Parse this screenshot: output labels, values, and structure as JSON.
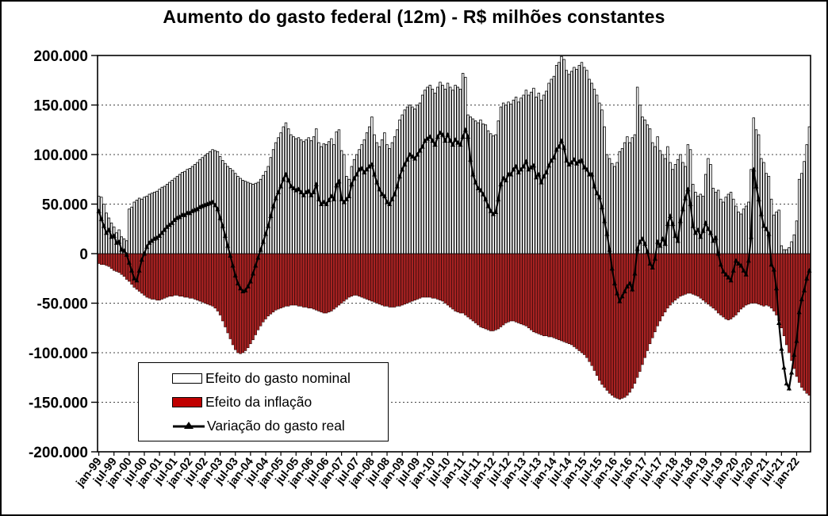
{
  "chart_data": {
    "type": "bar-line-combo",
    "title": "Aumento do gasto federal (12m) - R$ milhões constantes",
    "unit": "R$ milhões constantes",
    "grid": "dotted-horizontal",
    "legend_position": "inside-bottom-left",
    "y_axis": {
      "min": -200000,
      "max": 200000,
      "step": 50000,
      "tick_values": [
        200000,
        150000,
        100000,
        50000,
        0,
        -50000,
        -100000,
        -150000,
        -200000
      ],
      "tick_labels": [
        "200.000",
        "150.000",
        "100.000",
        "50.000",
        "0",
        "-50.000",
        "-100.000",
        "-150.000",
        "-200.000"
      ]
    },
    "x_axis": {
      "label_every_n_months": 6,
      "tick_labels": [
        "jan-99",
        "jul-99",
        "jan-00",
        "jul-00",
        "jan-01",
        "jul-01",
        "jan-02",
        "jul-02",
        "jan-03",
        "jul-03",
        "jan-04",
        "jul-04",
        "jan-05",
        "jul-05",
        "jan-06",
        "jul-06",
        "jan-07",
        "jul-07",
        "jan-08",
        "jul-08",
        "jan-09",
        "jul-09",
        "jan-10",
        "jul-10",
        "jan-11",
        "jul-11",
        "jan-12",
        "jul-12",
        "jan-13",
        "jul-13",
        "jan-14",
        "jul-14",
        "jan-15",
        "jul-15",
        "jan-16",
        "jul-16",
        "jan-17",
        "jul-17",
        "jan-18",
        "jul-18",
        "jan-19",
        "jul-19",
        "jan-20",
        "jul-20",
        "jan-21",
        "jul-21",
        "jan-22"
      ]
    },
    "series": [
      {
        "name": "Efeito do gasto nominal",
        "type": "bar",
        "fill": "#FFFFFF",
        "stroke": "#000000",
        "values": [
          58000,
          57000,
          50000,
          41000,
          36000,
          31000,
          27000,
          21000,
          24000,
          17000,
          15000,
          13000,
          45000,
          47000,
          52000,
          54000,
          56000,
          55000,
          57000,
          58000,
          60000,
          61000,
          62000,
          63000,
          65000,
          67000,
          68000,
          70000,
          72000,
          74000,
          76000,
          78000,
          80000,
          82000,
          83000,
          85000,
          86000,
          88000,
          90000,
          92000,
          95000,
          97000,
          99000,
          101000,
          103000,
          105000,
          104000,
          103000,
          98000,
          94000,
          91000,
          88000,
          86000,
          84000,
          81000,
          78000,
          76000,
          74000,
          73000,
          72000,
          71000,
          70000,
          71000,
          72000,
          75000,
          79000,
          83000,
          88000,
          97000,
          105000,
          112000,
          117000,
          122000,
          128000,
          132000,
          126000,
          120000,
          118000,
          116000,
          117000,
          115000,
          113000,
          115000,
          117000,
          114000,
          118000,
          126000,
          112000,
          108000,
          111000,
          110000,
          113000,
          116000,
          110000,
          123000,
          125000,
          104000,
          100000,
          78000,
          75000,
          88000,
          95000,
          100000,
          105000,
          110000,
          115000,
          122000,
          128000,
          138000,
          120000,
          112000,
          108000,
          115000,
          122000,
          110000,
          106000,
          112000,
          118000,
          125000,
          135000,
          140000,
          145000,
          148000,
          150000,
          148000,
          146000,
          150000,
          152000,
          160000,
          165000,
          168000,
          170000,
          166000,
          162000,
          168000,
          173000,
          170000,
          166000,
          172000,
          168000,
          165000,
          170000,
          168000,
          166000,
          182000,
          178000,
          140000,
          138000,
          136000,
          134000,
          132000,
          135000,
          131000,
          130000,
          124000,
          121000,
          119000,
          120000,
          134000,
          148000,
          152000,
          150000,
          153000,
          151000,
          155000,
          158000,
          153000,
          157000,
          160000,
          165000,
          160000,
          163000,
          167000,
          158000,
          162000,
          155000,
          160000,
          164000,
          172000,
          176000,
          179000,
          190000,
          193000,
          199000,
          196000,
          185000,
          181000,
          184000,
          188000,
          186000,
          190000,
          193000,
          188000,
          185000,
          176000,
          172000,
          166000,
          160000,
          152000,
          145000,
          128000,
          100000,
          96000,
          91000,
          88000,
          92000,
          103000,
          106000,
          112000,
          118000,
          112000,
          117000,
          120000,
          168000,
          150000,
          138000,
          135000,
          130000,
          126000,
          112000,
          108000,
          118000,
          104000,
          100000,
          96000,
          108000,
          92000,
          85000,
          90000,
          95000,
          100000,
          92000,
          88000,
          110000,
          105000,
          70000,
          62000,
          58000,
          60000,
          58000,
          80000,
          96000,
          90000,
          66000,
          62000,
          64000,
          55000,
          52000,
          57000,
          60000,
          62000,
          55000,
          48000,
          42000,
          40000,
          45000,
          48000,
          52000,
          85000,
          137000,
          125000,
          120000,
          96000,
          92000,
          81000,
          78000,
          55000,
          39000,
          42000,
          44000,
          8000,
          4000,
          4000,
          6000,
          12000,
          19000,
          33000,
          75000,
          81000,
          93000,
          110000,
          128000
        ]
      },
      {
        "name": "Efeito da inflação",
        "type": "bar",
        "fill": "#A82222",
        "stroke": "#2A0505",
        "legend_color": "#C00000",
        "values": [
          -10000,
          -11000,
          -11000,
          -12000,
          -13000,
          -15000,
          -17000,
          -18000,
          -19000,
          -21000,
          -23000,
          -26000,
          -28000,
          -31000,
          -34000,
          -36000,
          -38000,
          -40000,
          -42000,
          -44000,
          -45000,
          -46000,
          -46000,
          -47000,
          -47000,
          -46000,
          -45000,
          -44000,
          -43000,
          -43000,
          -42000,
          -42000,
          -43000,
          -43000,
          -44000,
          -44000,
          -45000,
          -45000,
          -46000,
          -47000,
          -48000,
          -49000,
          -50000,
          -51000,
          -52000,
          -53000,
          -55000,
          -58000,
          -62000,
          -68000,
          -74000,
          -80000,
          -86000,
          -92000,
          -97000,
          -100000,
          -101000,
          -100000,
          -98000,
          -95000,
          -91000,
          -87000,
          -82000,
          -77000,
          -73000,
          -69000,
          -66000,
          -63000,
          -61000,
          -59000,
          -57000,
          -56000,
          -55000,
          -54000,
          -53000,
          -53000,
          -52000,
          -52000,
          -52000,
          -53000,
          -53000,
          -54000,
          -54000,
          -55000,
          -55000,
          -56000,
          -57000,
          -58000,
          -59000,
          -60000,
          -60000,
          -59000,
          -58000,
          -56000,
          -54000,
          -52000,
          -50000,
          -48000,
          -46000,
          -44000,
          -43000,
          -42000,
          -42000,
          -43000,
          -44000,
          -45000,
          -46000,
          -47000,
          -48000,
          -49000,
          -50000,
          -51000,
          -52000,
          -53000,
          -53000,
          -54000,
          -54000,
          -54000,
          -53000,
          -53000,
          -52000,
          -51000,
          -50000,
          -49000,
          -48000,
          -47000,
          -46000,
          -45000,
          -44000,
          -44000,
          -44000,
          -44000,
          -45000,
          -45000,
          -46000,
          -47000,
          -48000,
          -50000,
          -52000,
          -54000,
          -56000,
          -58000,
          -59000,
          -60000,
          -60000,
          -62000,
          -64000,
          -66000,
          -68000,
          -70000,
          -72000,
          -74000,
          -75000,
          -76000,
          -77000,
          -78000,
          -78000,
          -77000,
          -76000,
          -74000,
          -72000,
          -70000,
          -69000,
          -68000,
          -68000,
          -69000,
          -70000,
          -71000,
          -72000,
          -73000,
          -75000,
          -77000,
          -79000,
          -80000,
          -81000,
          -82000,
          -83000,
          -83000,
          -84000,
          -84000,
          -85000,
          -86000,
          -87000,
          -88000,
          -89000,
          -90000,
          -91000,
          -92000,
          -94000,
          -96000,
          -98000,
          -100000,
          -102000,
          -105000,
          -109000,
          -113000,
          -118000,
          -123000,
          -128000,
          -132000,
          -135000,
          -138000,
          -141000,
          -143000,
          -145000,
          -146000,
          -147000,
          -146000,
          -145000,
          -143000,
          -140000,
          -136000,
          -131000,
          -125000,
          -119000,
          -112000,
          -105000,
          -98000,
          -91000,
          -85000,
          -79000,
          -73000,
          -68000,
          -63000,
          -59000,
          -55000,
          -52000,
          -49000,
          -47000,
          -45000,
          -43000,
          -42000,
          -41000,
          -40000,
          -40000,
          -41000,
          -42000,
          -43000,
          -45000,
          -47000,
          -49000,
          -51000,
          -53000,
          -55000,
          -57000,
          -60000,
          -62000,
          -64000,
          -66000,
          -67000,
          -66000,
          -64000,
          -62000,
          -59000,
          -56000,
          -54000,
          -52000,
          -51000,
          -50000,
          -50000,
          -50000,
          -51000,
          -52000,
          -53000,
          -52000,
          -53000,
          -55000,
          -58000,
          -62000,
          -68000,
          -75000,
          -83000,
          -92000,
          -100000,
          -108000,
          -116000,
          -124000,
          -130000,
          -135000,
          -138000,
          -141000,
          -143000
        ]
      },
      {
        "name": "Variação do gasto real",
        "type": "line",
        "stroke": "#000000",
        "marker": "triangle-up",
        "values": [
          43000,
          35000,
          28000,
          21000,
          24000,
          17000,
          18000,
          11000,
          12000,
          4000,
          3000,
          -1000,
          -9000,
          -17000,
          -25000,
          -27000,
          -17000,
          -6000,
          0,
          7000,
          11000,
          13000,
          15000,
          16000,
          18000,
          21000,
          24000,
          27000,
          29000,
          31000,
          34000,
          36000,
          37000,
          39000,
          39000,
          41000,
          41000,
          43000,
          44000,
          45000,
          47000,
          48000,
          49000,
          50000,
          51000,
          52000,
          49000,
          45000,
          36000,
          28000,
          18000,
          8000,
          -2000,
          -12000,
          -22000,
          -30000,
          -35000,
          -38000,
          -37000,
          -33000,
          -28000,
          -20000,
          -12000,
          -4000,
          4000,
          12000,
          20000,
          28000,
          38000,
          48000,
          56000,
          62000,
          68000,
          75000,
          80000,
          74000,
          68000,
          66000,
          64000,
          65000,
          62000,
          59000,
          62000,
          63000,
          59000,
          62000,
          70000,
          55000,
          50000,
          52000,
          50000,
          54000,
          58000,
          55000,
          69000,
          73000,
          55000,
          52000,
          55000,
          58000,
          70000,
          76000,
          80000,
          85000,
          86000,
          82000,
          85000,
          88000,
          90000,
          80000,
          72000,
          65000,
          60000,
          58000,
          52000,
          50000,
          55000,
          60000,
          68000,
          78000,
          85000,
          90000,
          95000,
          100000,
          98000,
          96000,
          100000,
          104000,
          108000,
          114000,
          116000,
          118000,
          114000,
          110000,
          118000,
          122000,
          120000,
          114000,
          120000,
          114000,
          110000,
          115000,
          112000,
          110000,
          118000,
          125000,
          118000,
          95000,
          80000,
          72000,
          66000,
          64000,
          60000,
          55000,
          48000,
          43000,
          40000,
          42000,
          55000,
          70000,
          76000,
          74000,
          80000,
          80000,
          85000,
          88000,
          82000,
          85000,
          88000,
          93000,
          85000,
          87000,
          89000,
          77000,
          80000,
          72000,
          78000,
          82000,
          89000,
          94000,
          97000,
          105000,
          108000,
          114000,
          107000,
          94000,
          90000,
          92000,
          95000,
          91000,
          93000,
          94000,
          87000,
          85000,
          80000,
          80000,
          68000,
          61000,
          57000,
          47000,
          33000,
          20000,
          4000,
          -15000,
          -30000,
          -40000,
          -48000,
          -43000,
          -38000,
          -33000,
          -30000,
          -36000,
          -20000,
          5000,
          12000,
          15000,
          10000,
          2000,
          -10000,
          -14000,
          -5000,
          12000,
          8000,
          15000,
          10000,
          30000,
          38000,
          30000,
          18000,
          13000,
          33000,
          45000,
          56000,
          65000,
          50000,
          28000,
          21000,
          24000,
          17000,
          23000,
          31000,
          25000,
          21000,
          13000,
          16000,
          0,
          -11000,
          -18000,
          -21000,
          -24000,
          -27000,
          -17000,
          -7000,
          -10000,
          -12000,
          -17000,
          -21000,
          -7000,
          17000,
          85000,
          68000,
          55000,
          40000,
          28000,
          25000,
          20000,
          -11000,
          -16000,
          -35000,
          -70000,
          -96000,
          -115000,
          -131000,
          -136000,
          -120000,
          -102000,
          -88000,
          -59000,
          -46000,
          -37000,
          -25000,
          -17000
        ]
      }
    ],
    "legend": {
      "items": [
        {
          "label": "Efeito do gasto nominal",
          "swatch": "white-bar"
        },
        {
          "label": "Efeito da inflação",
          "swatch": "red-bar"
        },
        {
          "label": "Variação do gasto real",
          "swatch": "line-marker"
        }
      ]
    }
  }
}
